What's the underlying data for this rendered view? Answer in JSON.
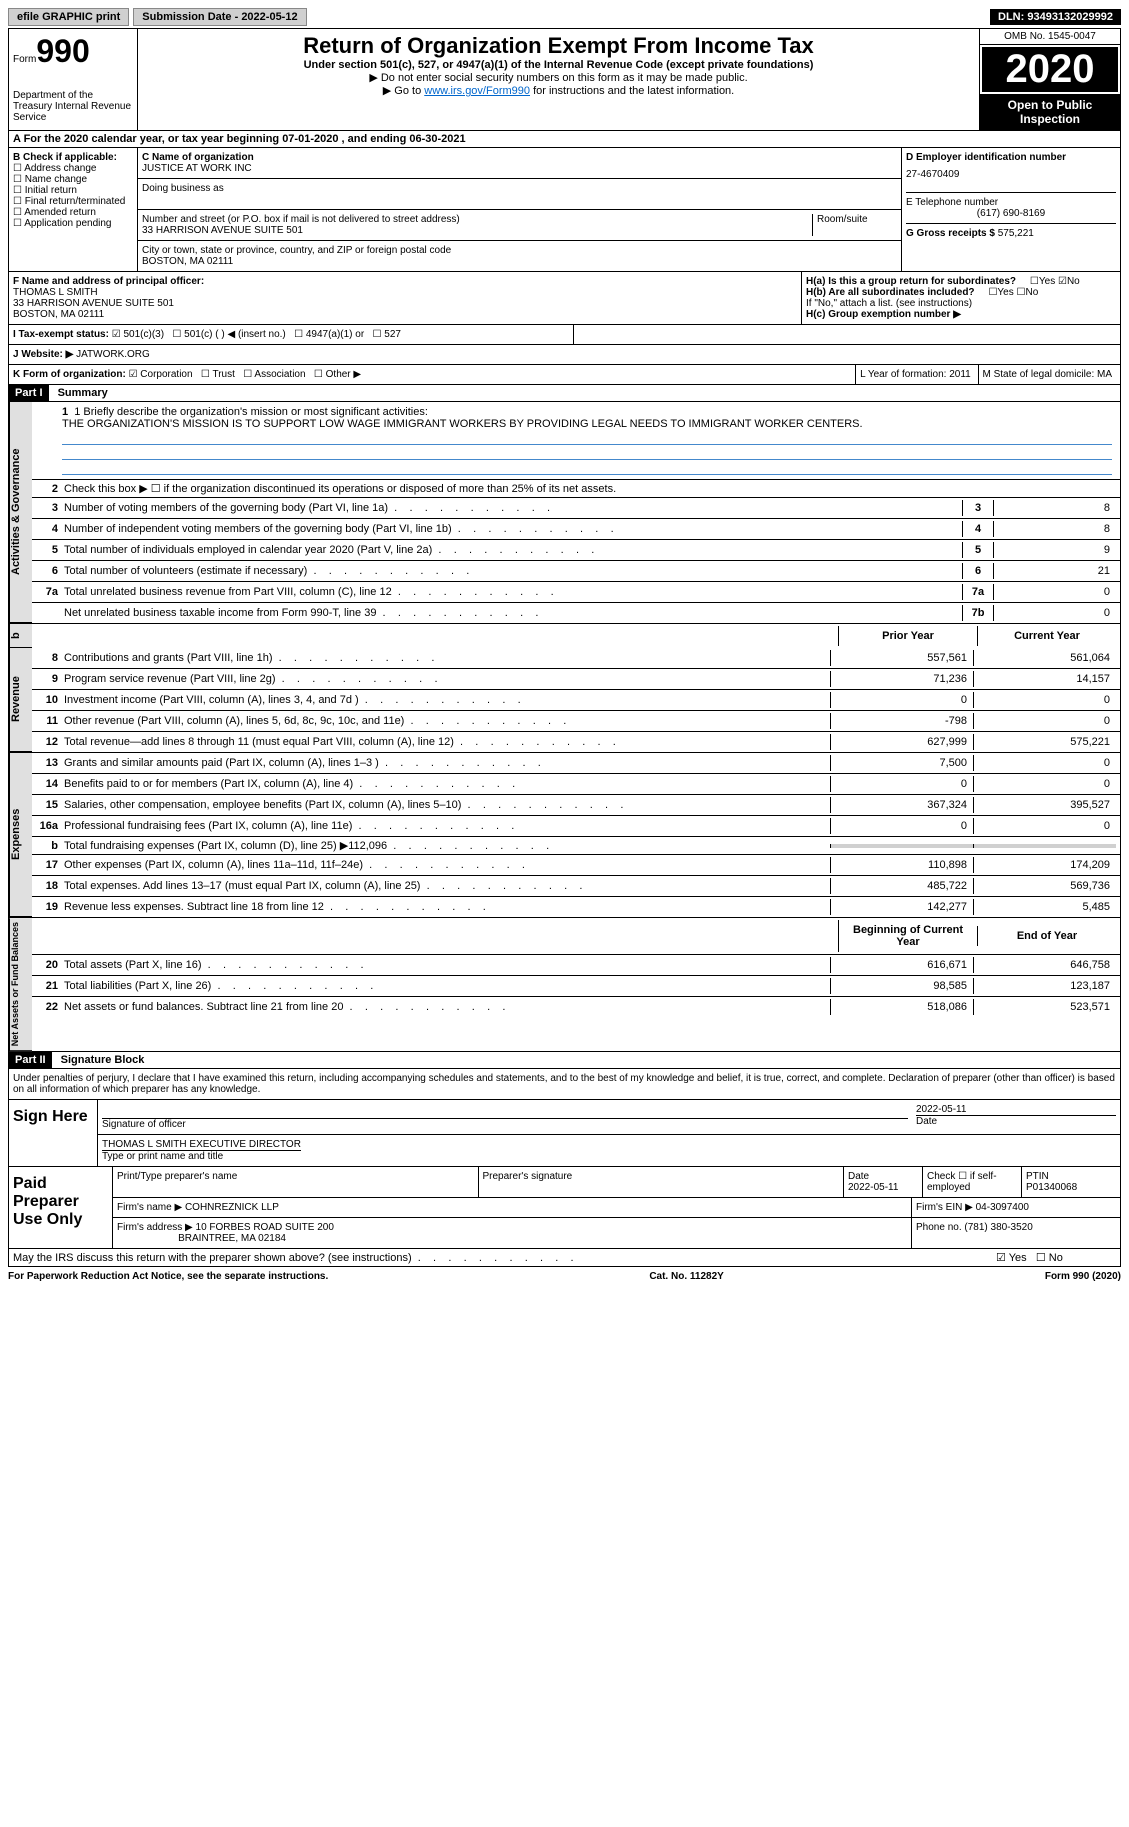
{
  "topbar": {
    "efile": "efile GRAPHIC print",
    "submission": "Submission Date - 2022-05-12",
    "dln": "DLN: 93493132029992"
  },
  "header": {
    "form_prefix": "Form",
    "form_number": "990",
    "title": "Return of Organization Exempt From Income Tax",
    "subtitle": "Under section 501(c), 527, or 4947(a)(1) of the Internal Revenue Code (except private foundations)",
    "inst1": "▶ Do not enter social security numbers on this form as it may be made public.",
    "inst2_pre": "▶ Go to ",
    "inst2_link": "www.irs.gov/Form990",
    "inst2_post": " for instructions and the latest information.",
    "omb": "OMB No. 1545-0047",
    "year": "2020",
    "open": "Open to Public Inspection",
    "dept": "Department of the Treasury Internal Revenue Service"
  },
  "a_line": "A For the 2020 calendar year, or tax year beginning 07-01-2020    , and ending 06-30-2021",
  "b": {
    "label": "B Check if applicable:",
    "items": [
      "Address change",
      "Name change",
      "Initial return",
      "Final return/terminated",
      "Amended return",
      "Application pending"
    ]
  },
  "c": {
    "name_label": "C Name of organization",
    "name": "JUSTICE AT WORK INC",
    "dba_label": "Doing business as",
    "addr_label": "Number and street (or P.O. box if mail is not delivered to street address)",
    "room_label": "Room/suite",
    "addr": "33 HARRISON AVENUE SUITE 501",
    "city_label": "City or town, state or province, country, and ZIP or foreign postal code",
    "city": "BOSTON, MA  02111"
  },
  "d": {
    "ein_label": "D Employer identification number",
    "ein": "27-4670409",
    "phone_label": "E Telephone number",
    "phone": "(617) 690-8169",
    "gross_label": "G Gross receipts $",
    "gross": "575,221"
  },
  "f": {
    "label": "F  Name and address of principal officer:",
    "name": "THOMAS L SMITH",
    "addr1": "33 HARRISON AVENUE SUITE 501",
    "addr2": "BOSTON, MA  02111"
  },
  "h": {
    "a_label": "H(a)  Is this a group return for subordinates?",
    "b_label": "H(b)  Are all subordinates included?",
    "b_note": "If \"No,\" attach a list. (see instructions)",
    "c_label": "H(c)  Group exemption number ▶",
    "yes": "Yes",
    "no": "No"
  },
  "i": {
    "label": "I  Tax-exempt status:",
    "opts": [
      "501(c)(3)",
      "501(c) (  ) ◀ (insert no.)",
      "4947(a)(1) or",
      "527"
    ]
  },
  "j": {
    "label": "J  Website: ▶",
    "val": "JATWORK.ORG"
  },
  "k": {
    "label": "K Form of organization:",
    "opts": [
      "Corporation",
      "Trust",
      "Association",
      "Other ▶"
    ],
    "l_label": "L Year of formation: 2011",
    "m_label": "M State of legal domicile: MA"
  },
  "part1": {
    "header": "Part I",
    "title": "Summary",
    "tab_gov": "Activities & Governance",
    "tab_rev": "Revenue",
    "tab_exp": "Expenses",
    "tab_net": "Net Assets or Fund Balances",
    "line1_label": "1  Briefly describe the organization's mission or most significant activities:",
    "mission": "THE ORGANIZATION'S MISSION IS TO SUPPORT LOW WAGE IMMIGRANT WORKERS BY PROVIDING LEGAL NEEDS TO IMMIGRANT WORKER CENTERS.",
    "line2": "Check this box ▶ ☐ if the organization discontinued its operations or disposed of more than 25% of its net assets.",
    "gov_lines": [
      {
        "num": "3",
        "desc": "Number of voting members of the governing body (Part VI, line 1a)",
        "box": "3",
        "val": "8"
      },
      {
        "num": "4",
        "desc": "Number of independent voting members of the governing body (Part VI, line 1b)",
        "box": "4",
        "val": "8"
      },
      {
        "num": "5",
        "desc": "Total number of individuals employed in calendar year 2020 (Part V, line 2a)",
        "box": "5",
        "val": "9"
      },
      {
        "num": "6",
        "desc": "Total number of volunteers (estimate if necessary)",
        "box": "6",
        "val": "21"
      },
      {
        "num": "7a",
        "desc": "Total unrelated business revenue from Part VIII, column (C), line 12",
        "box": "7a",
        "val": "0"
      },
      {
        "num": "",
        "desc": "Net unrelated business taxable income from Form 990-T, line 39",
        "box": "7b",
        "val": "0"
      }
    ],
    "col_prior": "Prior Year",
    "col_current": "Current Year",
    "rev_lines": [
      {
        "num": "8",
        "desc": "Contributions and grants (Part VIII, line 1h)",
        "py": "557,561",
        "cy": "561,064"
      },
      {
        "num": "9",
        "desc": "Program service revenue (Part VIII, line 2g)",
        "py": "71,236",
        "cy": "14,157"
      },
      {
        "num": "10",
        "desc": "Investment income (Part VIII, column (A), lines 3, 4, and 7d )",
        "py": "0",
        "cy": "0"
      },
      {
        "num": "11",
        "desc": "Other revenue (Part VIII, column (A), lines 5, 6d, 8c, 9c, 10c, and 11e)",
        "py": "-798",
        "cy": "0"
      },
      {
        "num": "12",
        "desc": "Total revenue—add lines 8 through 11 (must equal Part VIII, column (A), line 12)",
        "py": "627,999",
        "cy": "575,221"
      }
    ],
    "exp_lines": [
      {
        "num": "13",
        "desc": "Grants and similar amounts paid (Part IX, column (A), lines 1–3 )",
        "py": "7,500",
        "cy": "0"
      },
      {
        "num": "14",
        "desc": "Benefits paid to or for members (Part IX, column (A), line 4)",
        "py": "0",
        "cy": "0"
      },
      {
        "num": "15",
        "desc": "Salaries, other compensation, employee benefits (Part IX, column (A), lines 5–10)",
        "py": "367,324",
        "cy": "395,527"
      },
      {
        "num": "16a",
        "desc": "Professional fundraising fees (Part IX, column (A), line 11e)",
        "py": "0",
        "cy": "0"
      },
      {
        "num": "b",
        "desc": "Total fundraising expenses (Part IX, column (D), line 25) ▶112,096",
        "py": "",
        "cy": "",
        "gray": true
      },
      {
        "num": "17",
        "desc": "Other expenses (Part IX, column (A), lines 11a–11d, 11f–24e)",
        "py": "110,898",
        "cy": "174,209"
      },
      {
        "num": "18",
        "desc": "Total expenses. Add lines 13–17 (must equal Part IX, column (A), line 25)",
        "py": "485,722",
        "cy": "569,736"
      },
      {
        "num": "19",
        "desc": "Revenue less expenses. Subtract line 18 from line 12",
        "py": "142,277",
        "cy": "5,485"
      }
    ],
    "col_begin": "Beginning of Current Year",
    "col_end": "End of Year",
    "net_lines": [
      {
        "num": "20",
        "desc": "Total assets (Part X, line 16)",
        "py": "616,671",
        "cy": "646,758"
      },
      {
        "num": "21",
        "desc": "Total liabilities (Part X, line 26)",
        "py": "98,585",
        "cy": "123,187"
      },
      {
        "num": "22",
        "desc": "Net assets or fund balances. Subtract line 21 from line 20",
        "py": "518,086",
        "cy": "523,571"
      }
    ]
  },
  "part2": {
    "header": "Part II",
    "title": "Signature Block",
    "penalties": "Under penalties of perjury, I declare that I have examined this return, including accompanying schedules and statements, and to the best of my knowledge and belief, it is true, correct, and complete. Declaration of preparer (other than officer) is based on all information of which preparer has any knowledge.",
    "sign_here": "Sign Here",
    "sig_officer": "Signature of officer",
    "sig_date": "2022-05-11",
    "date_label": "Date",
    "officer_name": "THOMAS L SMITH  EXECUTIVE DIRECTOR",
    "type_name": "Type or print name and title",
    "paid_label": "Paid Preparer Use Only",
    "prep_name_label": "Print/Type preparer's name",
    "prep_sig_label": "Preparer's signature",
    "prep_date_label": "Date",
    "prep_date": "2022-05-11",
    "check_if": "Check ☐ if self-employed",
    "ptin_label": "PTIN",
    "ptin": "P01340068",
    "firm_name_label": "Firm's name    ▶",
    "firm_name": "COHNREZNICK LLP",
    "firm_ein_label": "Firm's EIN ▶",
    "firm_ein": "04-3097400",
    "firm_addr_label": "Firm's address ▶",
    "firm_addr": "10 FORBES ROAD SUITE 200",
    "firm_city": "BRAINTREE, MA  02184",
    "phone_label": "Phone no.",
    "phone": "(781) 380-3520",
    "discuss": "May the IRS discuss this return with the preparer shown above? (see instructions)",
    "yes": "Yes",
    "no": "No"
  },
  "footer": {
    "left": "For Paperwork Reduction Act Notice, see the separate instructions.",
    "mid": "Cat. No. 11282Y",
    "right": "Form 990 (2020)"
  }
}
